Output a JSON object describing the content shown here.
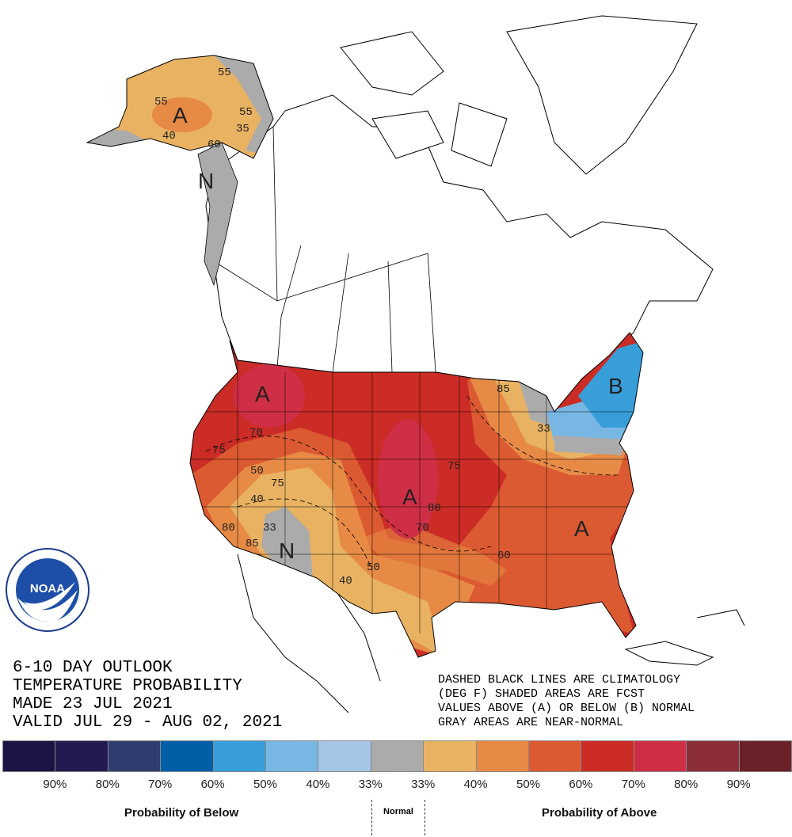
{
  "title_block": {
    "line1": "6-10 DAY OUTLOOK",
    "line2": "TEMPERATURE PROBABILITY",
    "line3": "MADE  23 JUL 2021",
    "line4": "VALID  JUL 29 - AUG 02, 2021"
  },
  "notes": {
    "line1": "DASHED BLACK LINES ARE CLIMATOLOGY",
    "line2": "(DEG F) SHADED AREAS ARE FCST",
    "line3": "VALUES ABOVE (A) OR BELOW (B) NORMAL",
    "line4": "GRAY AREAS ARE NEAR-NORMAL"
  },
  "logo": {
    "text": "NOAA",
    "ring_text": "NATIONAL OCEANIC AND ATMOSPHERIC ADMINISTRATION · U.S. DEPARTMENT OF COMMERCE"
  },
  "legend": {
    "colors": [
      "#1b1444",
      "#231a52",
      "#2e3d6e",
      "#005ea6",
      "#379ed9",
      "#78b7e4",
      "#a4c5e6",
      "#ababab",
      "#e9b262",
      "#e68a45",
      "#dc5a31",
      "#cb2c26",
      "#cf2f46",
      "#8c2e38",
      "#6a2128"
    ],
    "ticks": [
      "90%",
      "80%",
      "70%",
      "60%",
      "50%",
      "40%",
      "33%",
      "33%",
      "40%",
      "50%",
      "60%",
      "70%",
      "80%",
      "90%"
    ],
    "below_label": "Probability of Below",
    "normal_label": "Normal",
    "above_label": "Probability of Above"
  },
  "map_labels": {
    "alaska": [
      "55",
      "55",
      "35",
      "40",
      "60",
      "55"
    ],
    "alaska_letters": [
      "A",
      "N"
    ],
    "conus_contours": [
      "70",
      "75",
      "50",
      "75",
      "40",
      "33",
      "85",
      "80",
      "75",
      "80",
      "70",
      "50",
      "40",
      "60",
      "85",
      "33"
    ],
    "conus_letters": [
      "A",
      "N",
      "A",
      "A",
      "B"
    ]
  }
}
